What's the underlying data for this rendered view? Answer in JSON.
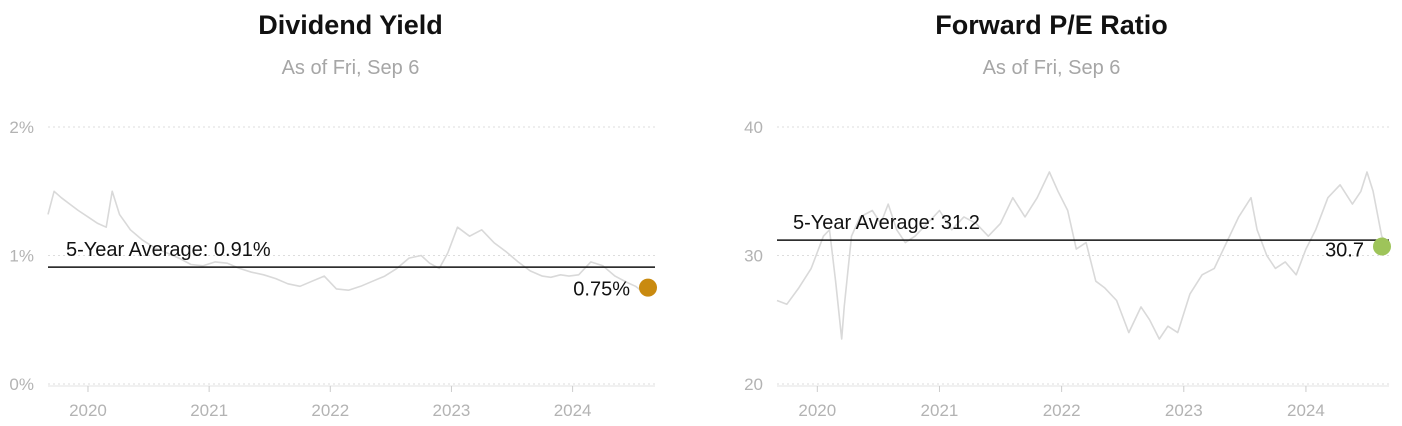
{
  "chart_data": [
    {
      "type": "line",
      "title": "Dividend Yield",
      "subtitle": "As of Fri, Sep 6",
      "xlabel": "",
      "ylabel": "",
      "x_range": [
        2019.67,
        2024.68
      ],
      "ylim": [
        0,
        2
      ],
      "y_ticks": [
        {
          "value": 0,
          "label": "0%"
        },
        {
          "value": 1,
          "label": "1%"
        },
        {
          "value": 2,
          "label": "2%"
        }
      ],
      "x_ticks": [
        {
          "value": 2020,
          "label": "2020"
        },
        {
          "value": 2021,
          "label": "2021"
        },
        {
          "value": 2022,
          "label": "2022"
        },
        {
          "value": 2023,
          "label": "2023"
        },
        {
          "value": 2024,
          "label": "2024"
        }
      ],
      "grid": "horizontal dotted",
      "series": [
        {
          "color": "#d9d9d9",
          "x": [
            2019.67,
            2019.72,
            2019.78,
            2019.85,
            2019.92,
            2020.0,
            2020.08,
            2020.15,
            2020.2,
            2020.26,
            2020.35,
            2020.45,
            2020.55,
            2020.65,
            2020.75,
            2020.85,
            2020.95,
            2021.05,
            2021.15,
            2021.25,
            2021.35,
            2021.45,
            2021.55,
            2021.65,
            2021.75,
            2021.85,
            2021.95,
            2022.05,
            2022.15,
            2022.25,
            2022.35,
            2022.45,
            2022.55,
            2022.65,
            2022.75,
            2022.82,
            2022.9,
            2022.97,
            2023.05,
            2023.15,
            2023.25,
            2023.35,
            2023.45,
            2023.55,
            2023.65,
            2023.75,
            2023.82,
            2023.9,
            2023.97,
            2024.05,
            2024.15,
            2024.25,
            2024.35,
            2024.45,
            2024.52,
            2024.6,
            2024.68
          ],
          "values": [
            1.32,
            1.5,
            1.45,
            1.4,
            1.35,
            1.3,
            1.25,
            1.22,
            1.5,
            1.32,
            1.2,
            1.12,
            1.06,
            1.02,
            0.98,
            0.93,
            0.92,
            0.95,
            0.94,
            0.9,
            0.87,
            0.85,
            0.82,
            0.78,
            0.76,
            0.8,
            0.84,
            0.74,
            0.73,
            0.76,
            0.8,
            0.84,
            0.9,
            0.98,
            1.0,
            0.94,
            0.9,
            1.02,
            1.22,
            1.15,
            1.2,
            1.1,
            1.03,
            0.95,
            0.88,
            0.84,
            0.83,
            0.85,
            0.84,
            0.85,
            0.95,
            0.92,
            0.84,
            0.79,
            0.76,
            0.7,
            0.75
          ]
        }
      ],
      "average": {
        "value": 0.91,
        "label": "5-Year Average: 0.91%"
      },
      "current": {
        "value": 0.75,
        "label": "0.75%",
        "color": "#c98a0f"
      }
    },
    {
      "type": "line",
      "title": "Forward P/E Ratio",
      "subtitle": "As of Fri, Sep 6",
      "xlabel": "",
      "ylabel": "",
      "x_range": [
        2019.67,
        2024.68
      ],
      "ylim": [
        20,
        40
      ],
      "y_ticks": [
        {
          "value": 20,
          "label": "20"
        },
        {
          "value": 30,
          "label": "30"
        },
        {
          "value": 40,
          "label": "40"
        }
      ],
      "x_ticks": [
        {
          "value": 2020,
          "label": "2020"
        },
        {
          "value": 2021,
          "label": "2021"
        },
        {
          "value": 2022,
          "label": "2022"
        },
        {
          "value": 2023,
          "label": "2023"
        },
        {
          "value": 2024,
          "label": "2024"
        }
      ],
      "grid": "horizontal dotted",
      "series": [
        {
          "color": "#d9d9d9",
          "x": [
            2019.67,
            2019.75,
            2019.85,
            2019.95,
            2020.05,
            2020.1,
            2020.15,
            2020.2,
            2020.22,
            2020.28,
            2020.35,
            2020.45,
            2020.52,
            2020.58,
            2020.65,
            2020.72,
            2020.8,
            2020.9,
            2021.0,
            2021.1,
            2021.2,
            2021.3,
            2021.4,
            2021.5,
            2021.6,
            2021.7,
            2021.8,
            2021.9,
            2021.97,
            2022.05,
            2022.12,
            2022.2,
            2022.28,
            2022.35,
            2022.45,
            2022.55,
            2022.65,
            2022.72,
            2022.8,
            2022.87,
            2022.95,
            2023.05,
            2023.15,
            2023.25,
            2023.35,
            2023.45,
            2023.55,
            2023.6,
            2023.68,
            2023.75,
            2023.83,
            2023.92,
            2024.0,
            2024.08,
            2024.18,
            2024.28,
            2024.38,
            2024.45,
            2024.5,
            2024.55,
            2024.62,
            2024.68
          ],
          "values": [
            26.5,
            26.2,
            27.5,
            29.0,
            31.5,
            32.0,
            28.0,
            23.5,
            26.0,
            31.5,
            33.0,
            33.5,
            32.5,
            34.0,
            32.0,
            31.0,
            31.5,
            32.5,
            33.5,
            32.0,
            33.0,
            32.5,
            31.5,
            32.5,
            34.5,
            33.0,
            34.5,
            36.5,
            35.0,
            33.5,
            30.5,
            31.0,
            28.0,
            27.5,
            26.5,
            24.0,
            26.0,
            25.0,
            23.5,
            24.5,
            24.0,
            27.0,
            28.5,
            29.0,
            31.0,
            33.0,
            34.5,
            32.0,
            30.0,
            29.0,
            29.5,
            28.5,
            30.5,
            32.0,
            34.5,
            35.5,
            34.0,
            35.0,
            36.5,
            35.0,
            31.5,
            30.7
          ]
        }
      ],
      "average": {
        "value": 31.2,
        "label": "5-Year Average: 31.2"
      },
      "current": {
        "value": 30.7,
        "label": "30.7",
        "color": "#9ec45a"
      }
    }
  ]
}
